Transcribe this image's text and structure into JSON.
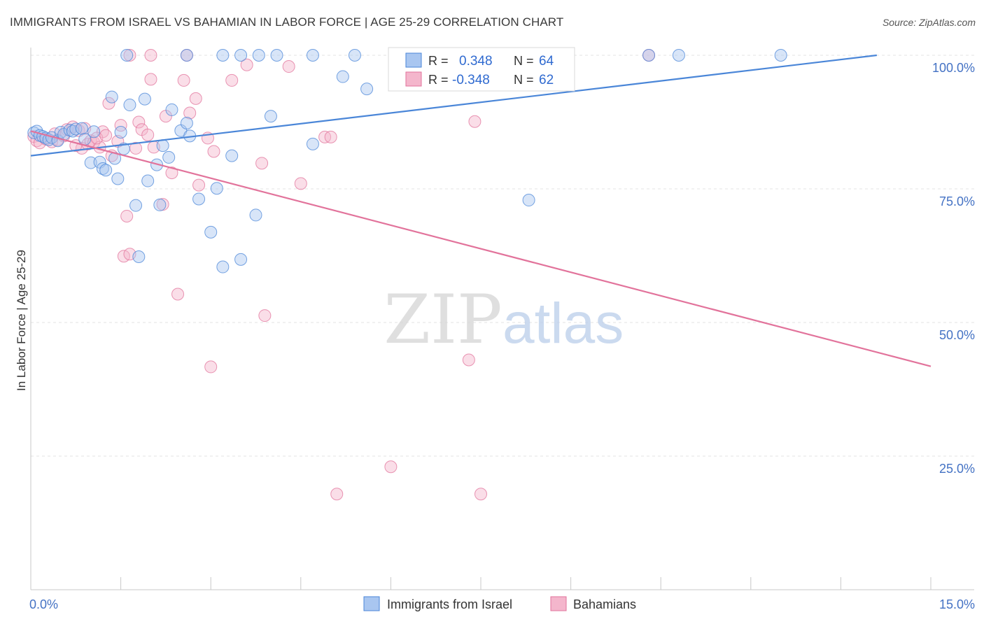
{
  "title": "IMMIGRANTS FROM ISRAEL VS BAHAMIAN IN LABOR FORCE | AGE 25-29 CORRELATION CHART",
  "source": "Source: ZipAtlas.com",
  "watermark": {
    "zip": "ZIP",
    "atlas": "atlas"
  },
  "colors": {
    "israel": "#4a86d8",
    "israel_fill": "#a9c6f0",
    "bahamian": "#e2739b",
    "bahamian_fill": "#f4b6cc",
    "axis_text": "#4472c4"
  },
  "stats_legend": [
    {
      "r_label": "R = ",
      "r_value": "0.348",
      "n_label": "N = ",
      "n_value": "64"
    },
    {
      "r_label": "R = ",
      "r_value": "-0.348",
      "n_label": "N = ",
      "n_value": "62"
    }
  ],
  "chart_data": {
    "type": "scatter",
    "xlabel": "",
    "ylabel": "In Labor Force | Age 25-29",
    "xlim": [
      0,
      15
    ],
    "ylim": [
      0,
      100
    ],
    "x_tick_labels": [
      {
        "value": 0,
        "label": "0.0%"
      },
      {
        "value": 15,
        "label": "15.0%"
      }
    ],
    "y_tick_labels": [
      {
        "value": 100,
        "label": "100.0%"
      },
      {
        "value": 75,
        "label": "75.0%"
      },
      {
        "value": 50,
        "label": "50.0%"
      },
      {
        "value": 25,
        "label": "25.0%"
      }
    ],
    "grid": true,
    "legend_placement": "bottom-center",
    "series": [
      {
        "name": "Immigrants from Israel",
        "color": "#4a86d8",
        "points": [
          [
            0.05,
            85.5
          ],
          [
            0.1,
            85.8
          ],
          [
            0.15,
            85.0
          ],
          [
            0.2,
            84.8
          ],
          [
            0.25,
            84.5
          ],
          [
            0.3,
            84.2
          ],
          [
            0.35,
            84.6
          ],
          [
            0.45,
            84.0
          ],
          [
            0.5,
            85.6
          ],
          [
            0.55,
            85.2
          ],
          [
            0.65,
            86.0
          ],
          [
            0.7,
            85.8
          ],
          [
            0.75,
            86.2
          ],
          [
            0.85,
            86.3
          ],
          [
            0.9,
            84.3
          ],
          [
            1.0,
            79.9
          ],
          [
            1.05,
            85.7
          ],
          [
            1.15,
            80.0
          ],
          [
            1.2,
            78.8
          ],
          [
            1.25,
            78.5
          ],
          [
            1.35,
            92.2
          ],
          [
            1.4,
            80.7
          ],
          [
            1.45,
            76.9
          ],
          [
            1.5,
            85.6
          ],
          [
            1.55,
            82.5
          ],
          [
            1.65,
            90.7
          ],
          [
            1.75,
            71.9
          ],
          [
            1.8,
            62.3
          ],
          [
            1.9,
            91.8
          ],
          [
            1.95,
            76.5
          ],
          [
            2.1,
            79.5
          ],
          [
            2.15,
            72.0
          ],
          [
            2.2,
            83.1
          ],
          [
            2.3,
            80.9
          ],
          [
            2.35,
            89.8
          ],
          [
            2.5,
            85.9
          ],
          [
            2.6,
            87.3
          ],
          [
            2.65,
            84.9
          ],
          [
            2.8,
            73.1
          ],
          [
            3.0,
            66.9
          ],
          [
            3.1,
            75.1
          ],
          [
            3.2,
            60.4
          ],
          [
            3.35,
            81.2
          ],
          [
            3.5,
            61.8
          ],
          [
            3.75,
            70.1
          ],
          [
            4.0,
            88.6
          ],
          [
            4.7,
            83.4
          ],
          [
            5.2,
            96.0
          ],
          [
            5.6,
            93.7
          ],
          [
            6.1,
            100.0
          ],
          [
            6.6,
            100.0
          ],
          [
            7.3,
            100.0
          ],
          [
            8.3,
            72.9
          ],
          [
            10.3,
            100.0
          ],
          [
            10.8,
            100.0
          ],
          [
            12.5,
            100.0
          ],
          [
            1.6,
            100.0
          ],
          [
            2.6,
            100.0
          ],
          [
            3.2,
            100.0
          ],
          [
            3.5,
            100.0
          ],
          [
            3.8,
            100.0
          ],
          [
            4.1,
            100.0
          ],
          [
            4.7,
            100.0
          ],
          [
            5.4,
            100.0
          ]
        ],
        "trend": {
          "x1": 0,
          "y1": 81.2,
          "x2": 14.1,
          "y2": 100.0
        }
      },
      {
        "name": "Bahamians",
        "color": "#e2739b",
        "points": [
          [
            0.05,
            84.8
          ],
          [
            0.1,
            84.0
          ],
          [
            0.15,
            83.6
          ],
          [
            0.25,
            84.3
          ],
          [
            0.35,
            83.8
          ],
          [
            0.45,
            84.2
          ],
          [
            0.55,
            84.9
          ],
          [
            0.6,
            86.1
          ],
          [
            0.7,
            86.6
          ],
          [
            0.8,
            85.9
          ],
          [
            0.85,
            82.6
          ],
          [
            0.9,
            86.3
          ],
          [
            0.95,
            83.4
          ],
          [
            1.0,
            84.0
          ],
          [
            1.05,
            83.7
          ],
          [
            1.15,
            82.8
          ],
          [
            1.2,
            85.7
          ],
          [
            1.3,
            91.0
          ],
          [
            1.35,
            81.2
          ],
          [
            1.45,
            83.9
          ],
          [
            1.5,
            86.9
          ],
          [
            1.55,
            62.4
          ],
          [
            1.6,
            69.9
          ],
          [
            1.65,
            62.8
          ],
          [
            1.75,
            82.6
          ],
          [
            1.8,
            87.5
          ],
          [
            1.85,
            86.1
          ],
          [
            1.95,
            85.1
          ],
          [
            2.0,
            95.5
          ],
          [
            2.05,
            82.8
          ],
          [
            2.2,
            72.1
          ],
          [
            2.25,
            88.6
          ],
          [
            2.35,
            78.0
          ],
          [
            2.45,
            55.3
          ],
          [
            2.55,
            95.3
          ],
          [
            2.65,
            89.2
          ],
          [
            2.75,
            91.9
          ],
          [
            2.8,
            75.7
          ],
          [
            2.95,
            84.5
          ],
          [
            3.0,
            41.7
          ],
          [
            3.05,
            82.0
          ],
          [
            3.35,
            95.3
          ],
          [
            3.6,
            98.2
          ],
          [
            3.85,
            79.8
          ],
          [
            3.9,
            51.3
          ],
          [
            4.3,
            97.9
          ],
          [
            4.5,
            76.0
          ],
          [
            4.9,
            84.7
          ],
          [
            5.0,
            84.7
          ],
          [
            5.1,
            17.9
          ],
          [
            6.0,
            23.0
          ],
          [
            7.3,
            43.0
          ],
          [
            7.4,
            87.6
          ],
          [
            7.5,
            17.9
          ],
          [
            1.65,
            100.0
          ],
          [
            2.0,
            100.0
          ],
          [
            2.6,
            100.0
          ],
          [
            10.3,
            100.0
          ],
          [
            1.1,
            84.5
          ],
          [
            1.25,
            85.0
          ],
          [
            0.4,
            85.3
          ],
          [
            0.75,
            83.1
          ]
        ],
        "trend": {
          "x1": 0,
          "y1": 85.8,
          "x2": 15.0,
          "y2": 41.8
        }
      }
    ]
  }
}
